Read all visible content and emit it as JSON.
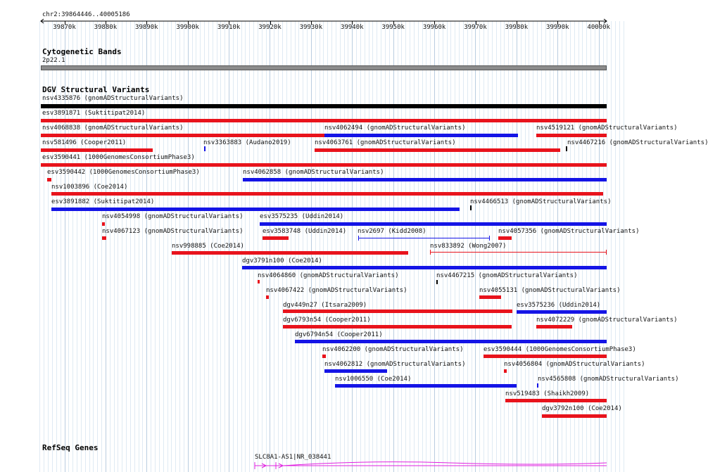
{
  "ruler": {
    "location": "chr2:39864446..40005186",
    "ticks": [
      "39870k",
      "39880k",
      "39890k",
      "39900k",
      "39910k",
      "39920k",
      "39930k",
      "39940k",
      "39950k",
      "39960k",
      "39970k",
      "39980k",
      "39990k",
      "40000k"
    ]
  },
  "cytoband": {
    "title": "Cytogenetic Bands",
    "band": "2p22.1"
  },
  "dgv": {
    "title": "DGV Structural Variants",
    "colors": {
      "loss": "#e8131c",
      "gain": "#1414e6",
      "complex": "#000000"
    },
    "features": [
      {
        "label": "nsv4335876 (gnomADStructuralVariants)",
        "type": "complex"
      },
      {
        "label": "esv3891871 (Suktitipat2014)",
        "type": "loss"
      },
      {
        "label": "nsv4068838 (gnomADStructuralVariants)",
        "type": "loss"
      },
      {
        "label": "nsv4062494 (gnomADStructuralVariants)",
        "type": "gain"
      },
      {
        "label": "nsv4519121 (gnomADStructuralVariants)",
        "type": "loss"
      },
      {
        "label": "nsv581496 (Cooper2011)",
        "type": "loss"
      },
      {
        "label": "nsv3363883 (Audano2019)",
        "type": "gain"
      },
      {
        "label": "nsv4063761 (gnomADStructuralVariants)",
        "type": "loss"
      },
      {
        "label": "nsv4467216 (gnomADStructuralVariants)",
        "type": "complex"
      },
      {
        "label": "esv3590441 (1000GenomesConsortiumPhase3)",
        "type": "loss"
      },
      {
        "label": "esv3590442 (1000GenomesConsortiumPhase3)",
        "type": "loss"
      },
      {
        "label": "nsv4062858 (gnomADStructuralVariants)",
        "type": "gain"
      },
      {
        "label": "nsv1003896 (Coe2014)",
        "type": "loss"
      },
      {
        "label": "esv3891882 (Suktitipat2014)",
        "type": "gain"
      },
      {
        "label": "nsv4466513 (gnomADStructuralVariants)",
        "type": "complex"
      },
      {
        "label": "nsv4054998 (gnomADStructuralVariants)",
        "type": "loss"
      },
      {
        "label": "esv3575235 (Uddin2014)",
        "type": "gain"
      },
      {
        "label": "nsv4067123 (gnomADStructuralVariants)",
        "type": "loss"
      },
      {
        "label": "esv3583748 (Uddin2014)",
        "type": "loss"
      },
      {
        "label": "nsv2697 (Kidd2008)",
        "type": "gain"
      },
      {
        "label": "nsv4057356 (gnomADStructuralVariants)",
        "type": "loss"
      },
      {
        "label": "nsv998885 (Coe2014)",
        "type": "loss"
      },
      {
        "label": "nsv833892 (Wong2007)",
        "type": "loss"
      },
      {
        "label": "dgv3791n100 (Coe2014)",
        "type": "gain"
      },
      {
        "label": "nsv4064860 (gnomADStructuralVariants)",
        "type": "loss"
      },
      {
        "label": "nsv4467215 (gnomADStructuralVariants)",
        "type": "complex"
      },
      {
        "label": "nsv4067422 (gnomADStructuralVariants)",
        "type": "loss"
      },
      {
        "label": "nsv4055131 (gnomADStructuralVariants)",
        "type": "loss"
      },
      {
        "label": "dgv449n27 (Itsara2009)",
        "type": "loss"
      },
      {
        "label": "esv3575236 (Uddin2014)",
        "type": "gain"
      },
      {
        "label": "dgv6793n54 (Cooper2011)",
        "type": "loss"
      },
      {
        "label": "nsv4072229 (gnomADStructuralVariants)",
        "type": "loss"
      },
      {
        "label": "dgv6794n54 (Cooper2011)",
        "type": "gain"
      },
      {
        "label": "nsv4062200 (gnomADStructuralVariants)",
        "type": "loss"
      },
      {
        "label": "esv3590444 (1000GenomesConsortiumPhase3)",
        "type": "loss"
      },
      {
        "label": "nsv4062812 (gnomADStructuralVariants)",
        "type": "gain"
      },
      {
        "label": "nsv4056804 (gnomADStructuralVariants)",
        "type": "loss"
      },
      {
        "label": "nsv1006550 (Coe2014)",
        "type": "gain"
      },
      {
        "label": "nsv4565808 (gnomADStructuralVariants)",
        "type": "gain"
      },
      {
        "label": "nsv519483 (Shaikh2009)",
        "type": "loss"
      },
      {
        "label": "dgv3792n100 (Coe2014)",
        "type": "loss"
      }
    ]
  },
  "refseq": {
    "title": "RefSeq Genes",
    "gene_label": "SLC8A1-AS1|NR_038441",
    "color": "#e020e0"
  }
}
